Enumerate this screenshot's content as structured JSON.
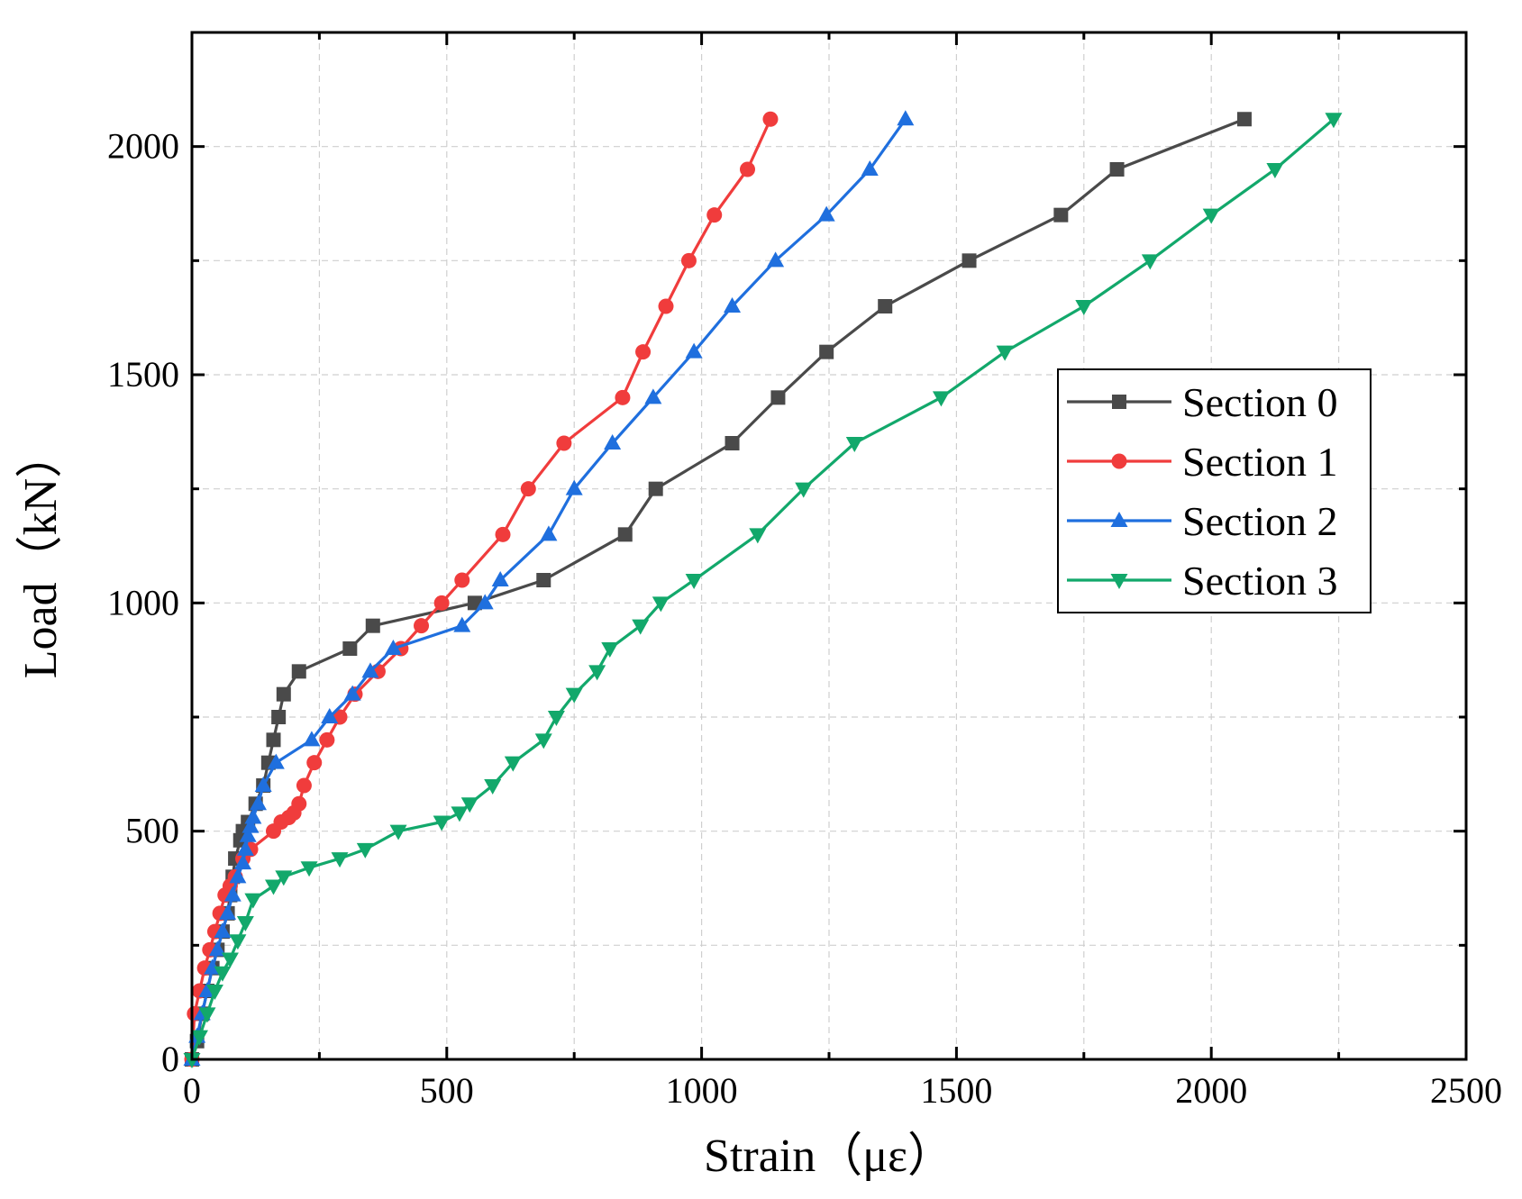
{
  "chart_data": {
    "type": "line",
    "title": "",
    "xlabel": "Strain（με）",
    "ylabel": "Load（kN）",
    "xlim": [
      0,
      2500
    ],
    "ylim": [
      0,
      2250
    ],
    "xticks": [
      0,
      500,
      1000,
      1500,
      2000,
      2500
    ],
    "yticks": [
      0,
      500,
      1000,
      1500,
      2000
    ],
    "minor_xticks": [
      250,
      750,
      1250,
      1750,
      2250
    ],
    "minor_yticks": [
      250,
      750,
      1250,
      1750
    ],
    "grid": true,
    "legend_position": "right",
    "series": [
      {
        "name": "Section 0",
        "color": "#4a4a4a",
        "marker": "square",
        "x": [
          0,
          10,
          20,
          30,
          40,
          50,
          60,
          70,
          75,
          80,
          85,
          95,
          100,
          110,
          125,
          140,
          150,
          160,
          170,
          180,
          210,
          310,
          355,
          555,
          690,
          850,
          910,
          1060,
          1150,
          1245,
          1360,
          1525,
          1705,
          1815,
          2065
        ],
        "y": [
          0,
          40,
          100,
          150,
          200,
          240,
          280,
          320,
          360,
          400,
          440,
          480,
          500,
          520,
          560,
          600,
          650,
          700,
          750,
          800,
          850,
          900,
          950,
          1000,
          1050,
          1150,
          1250,
          1350,
          1450,
          1550,
          1650,
          1750,
          1850,
          1950,
          2060
        ]
      },
      {
        "name": "Section 1",
        "color": "#f03c3c",
        "marker": "circle",
        "x": [
          0,
          5,
          15,
          25,
          35,
          45,
          55,
          65,
          75,
          85,
          100,
          115,
          160,
          175,
          190,
          200,
          210,
          220,
          240,
          265,
          290,
          320,
          365,
          410,
          450,
          490,
          530,
          610,
          660,
          730,
          845,
          885,
          930,
          975,
          1025,
          1090,
          1135
        ],
        "y": [
          0,
          100,
          150,
          200,
          240,
          280,
          320,
          360,
          380,
          400,
          440,
          460,
          500,
          520,
          530,
          540,
          560,
          600,
          650,
          700,
          750,
          800,
          850,
          900,
          950,
          1000,
          1050,
          1150,
          1250,
          1350,
          1450,
          1550,
          1650,
          1750,
          1850,
          1950,
          2060
        ]
      },
      {
        "name": "Section 2",
        "color": "#1f6fde",
        "marker": "triangle-up",
        "x": [
          0,
          10,
          20,
          30,
          40,
          50,
          60,
          70,
          80,
          90,
          100,
          105,
          110,
          115,
          120,
          130,
          140,
          165,
          235,
          270,
          315,
          350,
          395,
          530,
          575,
          605,
          700,
          750,
          825,
          905,
          985,
          1060,
          1145,
          1245,
          1330,
          1400
        ],
        "y": [
          0,
          50,
          100,
          150,
          200,
          240,
          280,
          320,
          360,
          400,
          430,
          460,
          490,
          510,
          530,
          560,
          600,
          650,
          700,
          750,
          800,
          850,
          900,
          950,
          1000,
          1050,
          1150,
          1250,
          1350,
          1450,
          1550,
          1650,
          1750,
          1850,
          1950,
          2060
        ]
      },
      {
        "name": "Section 3",
        "color": "#12a86b",
        "marker": "triangle-down",
        "x": [
          0,
          15,
          30,
          45,
          60,
          75,
          90,
          105,
          120,
          160,
          180,
          230,
          290,
          340,
          405,
          490,
          525,
          545,
          590,
          630,
          690,
          715,
          750,
          795,
          820,
          880,
          920,
          985,
          1110,
          1200,
          1300,
          1470,
          1595,
          1750,
          1880,
          2000,
          2125,
          2240
        ],
        "y": [
          0,
          50,
          100,
          150,
          190,
          220,
          260,
          300,
          350,
          380,
          400,
          420,
          440,
          460,
          500,
          520,
          540,
          560,
          600,
          650,
          700,
          750,
          800,
          850,
          900,
          950,
          1000,
          1050,
          1150,
          1250,
          1350,
          1450,
          1550,
          1650,
          1750,
          1850,
          1950,
          2060
        ]
      }
    ]
  }
}
